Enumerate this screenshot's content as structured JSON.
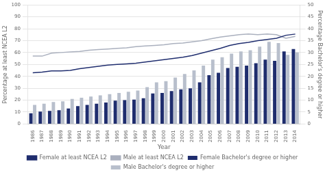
{
  "chart_data": {
    "type": "bar",
    "xlabel": "Year",
    "ylabel": "Percentage at least NCEA L2",
    "y2label": "Percentage Bachelor's degree or higher",
    "categories": [
      "1986",
      "1987",
      "1988",
      "1989",
      "1990",
      "1991",
      "1992",
      "1993",
      "1994",
      "1995",
      "1996",
      "1997",
      "1998",
      "1999",
      "2000",
      "2001",
      "2002",
      "2003",
      "2004",
      "2005",
      "2006",
      "2007",
      "2008",
      "2009",
      "2010",
      "2011",
      "2012",
      "2013",
      "2014"
    ],
    "series": [
      {
        "name": "Female Bachelor's degree or higher",
        "type": "bar",
        "axis": "y2",
        "color": "#1f2d6e",
        "values": [
          4.5,
          5.2,
          5.5,
          5.8,
          6.5,
          7.5,
          8.0,
          8.5,
          9.0,
          9.8,
          10.0,
          10.2,
          10.8,
          12.8,
          13.0,
          13.8,
          14.5,
          15.0,
          17.5,
          20.5,
          21.5,
          23.5,
          24.0,
          24.5,
          25.5,
          27.0,
          26.5,
          30.5,
          31.5
        ]
      },
      {
        "name": "Male Bachelor's degree or higher",
        "type": "bar",
        "axis": "y2",
        "color": "#b8bfcc",
        "values": [
          8.0,
          8.5,
          9.2,
          9.5,
          10.5,
          11.0,
          11.5,
          12.0,
          12.5,
          13.0,
          13.5,
          14.0,
          15.5,
          17.5,
          18.0,
          19.5,
          21.0,
          22.5,
          24.5,
          27.0,
          28.0,
          29.5,
          30.5,
          31.0,
          32.5,
          34.5,
          34.0,
          29.0,
          30.0
        ]
      },
      {
        "name": "Female at least NCEA L2",
        "type": "line",
        "color": "#1f2d6e",
        "values": [
          43.0,
          43.5,
          44.5,
          44.5,
          45.0,
          46.5,
          47.5,
          48.5,
          49.5,
          50.0,
          50.5,
          51.0,
          52.0,
          53.0,
          54.0,
          55.0,
          56.0,
          57.5,
          59.5,
          61.5,
          63.5,
          66.0,
          67.5,
          68.5,
          70.0,
          71.0,
          72.0,
          74.5,
          75.5
        ]
      },
      {
        "name": "Male at least NCEA L2",
        "type": "line",
        "color": "#aab0be",
        "values": [
          57.0,
          57.0,
          59.5,
          60.0,
          60.5,
          61.0,
          62.0,
          62.5,
          63.0,
          63.5,
          64.0,
          65.0,
          65.5,
          66.0,
          66.5,
          67.5,
          68.0,
          69.0,
          70.0,
          71.5,
          73.0,
          74.0,
          75.0,
          75.5,
          75.0,
          75.5,
          75.0,
          72.0,
          73.5
        ]
      }
    ],
    "ylim": [
      0,
      100
    ],
    "yticks": [
      0,
      10,
      20,
      30,
      40,
      50,
      60,
      70,
      80,
      90,
      100
    ],
    "y2lim": [
      0,
      50
    ],
    "y2ticks": [
      0,
      5,
      10,
      15,
      20,
      25,
      30,
      35,
      40,
      45,
      50
    ],
    "grid": true,
    "legend": "bottom"
  }
}
